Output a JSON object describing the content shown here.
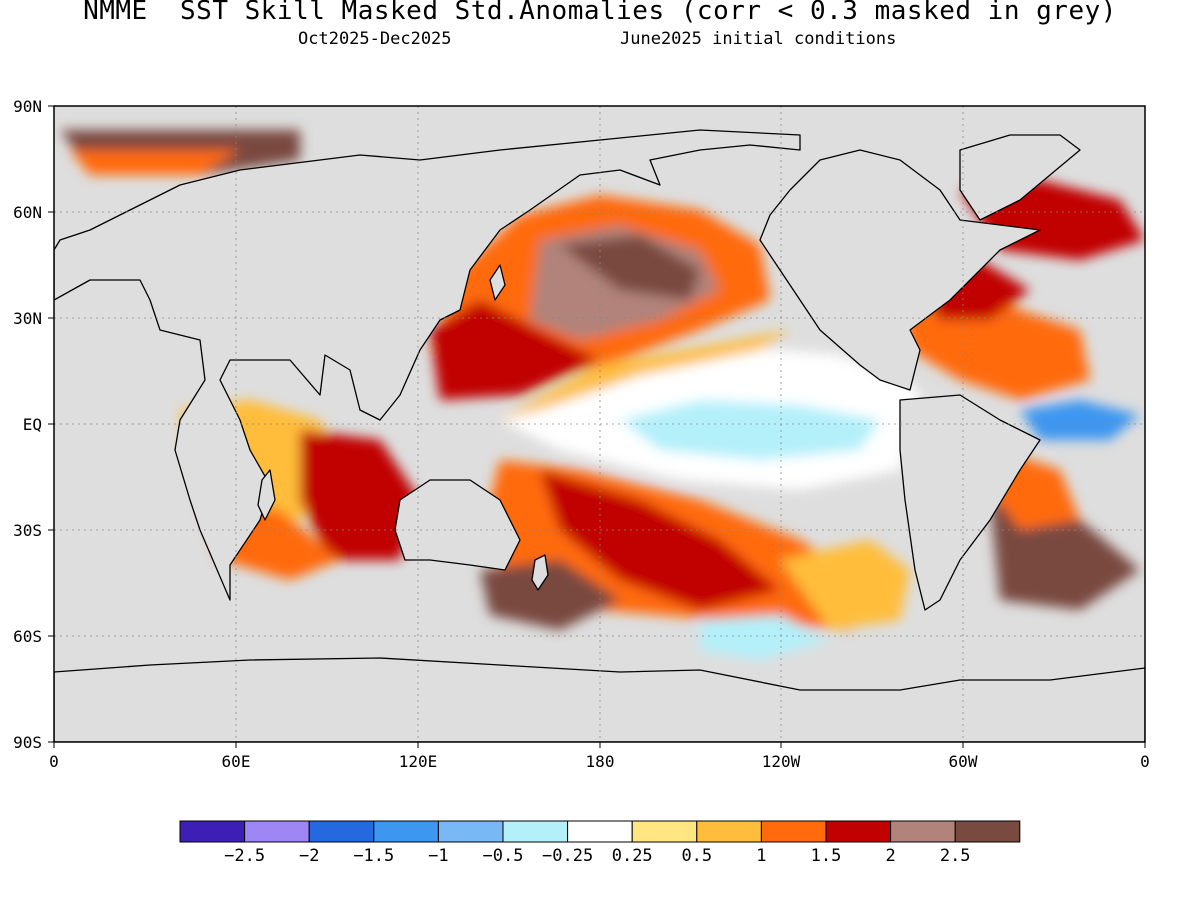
{
  "title": "NMME  SST Skill Masked Std.Anomalies (corr < 0.3 masked in grey)",
  "subtitle_left": "Oct2025-Dec2025",
  "subtitle_right": "June2025 initial conditions",
  "map": {
    "lon_ticks": [
      "0",
      "60E",
      "120E",
      "180",
      "120W",
      "60W",
      "0"
    ],
    "lat_ticks": [
      "90N",
      "60N",
      "30N",
      "EQ",
      "30S",
      "60S",
      "90S"
    ],
    "mask_color": "#dedede",
    "land_color": "#dedede"
  },
  "colorbar": {
    "colors": [
      "#3d1fb5",
      "#9e87f5",
      "#2469e0",
      "#3d96f0",
      "#78b9f5",
      "#b4f0fa",
      "#ffffff",
      "#ffe682",
      "#ffbd3b",
      "#ff6a0d",
      "#c10000",
      "#b1837a",
      "#794a3f"
    ],
    "labels": [
      "-2.5",
      "-2",
      "-1.5",
      "-1",
      "-0.5",
      "-0.25",
      "0.25",
      "0.5",
      "1",
      "1.5",
      "2",
      "2.5"
    ]
  }
}
